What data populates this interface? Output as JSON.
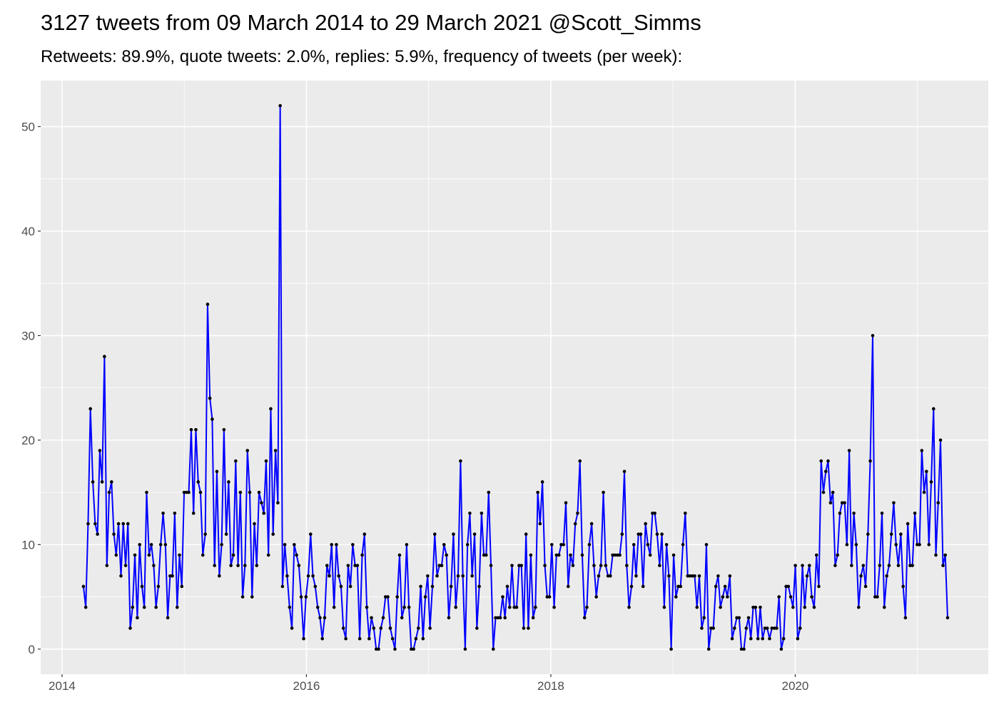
{
  "chart_data": {
    "type": "line",
    "title": "3127 tweets from 09 March 2014 to 29 March 2021 @Scott_Simms",
    "subtitle": "Retweets: 89.9%, quote tweets: 2.0%, replies: 5.9%, frequency of tweets (per week):",
    "color": "#0000ff",
    "marker_color": "#000000",
    "xlim": [
      2013.825,
      2021.58
    ],
    "xticks": [
      2014,
      2016,
      2018,
      2020
    ],
    "ylim": [
      -2.4,
      54.4
    ],
    "yticks": [
      0,
      10,
      20,
      30,
      40,
      50
    ],
    "grid": true,
    "x": [
      2014.175,
      2014.194,
      2014.213,
      2014.232,
      2014.252,
      2014.271,
      2014.29,
      2014.309,
      2014.328,
      2014.347,
      2014.367,
      2014.386,
      2014.405,
      2014.424,
      2014.443,
      2014.462,
      2014.482,
      2014.501,
      2014.52,
      2014.539,
      2014.558,
      2014.577,
      2014.596,
      2014.616,
      2014.635,
      2014.654,
      2014.673,
      2014.692,
      2014.712,
      2014.731,
      2014.75,
      2014.769,
      2014.788,
      2014.807,
      2014.827,
      2014.846,
      2014.865,
      2014.884,
      2014.903,
      2014.922,
      2014.942,
      2014.961,
      2014.98,
      2014.999,
      2015.018,
      2015.037,
      2015.057,
      2015.076,
      2015.095,
      2015.114,
      2015.133,
      2015.152,
      2015.172,
      2015.191,
      2015.21,
      2015.229,
      2015.248,
      2015.267,
      2015.287,
      2015.306,
      2015.325,
      2015.344,
      2015.363,
      2015.382,
      2015.402,
      2015.421,
      2015.44,
      2015.459,
      2015.478,
      2015.497,
      2015.517,
      2015.536,
      2015.555,
      2015.574,
      2015.593,
      2015.612,
      2015.632,
      2015.651,
      2015.67,
      2015.689,
      2015.708,
      2015.727,
      2015.747,
      2015.766,
      2015.785,
      2015.804,
      2015.823,
      2015.842,
      2015.862,
      2015.881,
      2015.9,
      2015.919,
      2015.938,
      2015.957,
      2015.977,
      2015.996,
      2016.015,
      2016.034,
      2016.053,
      2016.072,
      2016.092,
      2016.111,
      2016.13,
      2016.149,
      2016.168,
      2016.187,
      2016.206,
      2016.226,
      2016.245,
      2016.264,
      2016.283,
      2016.302,
      2016.322,
      2016.341,
      2016.36,
      2016.379,
      2016.398,
      2016.417,
      2016.436,
      2016.456,
      2016.475,
      2016.494,
      2016.513,
      2016.532,
      2016.551,
      2016.571,
      2016.59,
      2016.609,
      2016.628,
      2016.647,
      2016.666,
      2016.686,
      2016.705,
      2016.724,
      2016.743,
      2016.762,
      2016.781,
      2016.801,
      2016.82,
      2016.839,
      2016.858,
      2016.877,
      2016.896,
      2016.916,
      2016.935,
      2016.954,
      2016.973,
      2016.992,
      2017.011,
      2017.031,
      2017.05,
      2017.069,
      2017.088,
      2017.107,
      2017.126,
      2017.146,
      2017.165,
      2017.184,
      2017.203,
      2017.222,
      2017.241,
      2017.261,
      2017.28,
      2017.299,
      2017.318,
      2017.337,
      2017.356,
      2017.376,
      2017.395,
      2017.414,
      2017.433,
      2017.452,
      2017.471,
      2017.491,
      2017.51,
      2017.529,
      2017.548,
      2017.567,
      2017.586,
      2017.606,
      2017.625,
      2017.644,
      2017.663,
      2017.682,
      2017.701,
      2017.72,
      2017.74,
      2017.759,
      2017.778,
      2017.797,
      2017.816,
      2017.836,
      2017.855,
      2017.874,
      2017.893,
      2017.912,
      2017.931,
      2017.951,
      2017.97,
      2017.989,
      2018.008,
      2018.027,
      2018.046,
      2018.066,
      2018.085,
      2018.104,
      2018.123,
      2018.142,
      2018.161,
      2018.181,
      2018.2,
      2018.219,
      2018.238,
      2018.257,
      2018.276,
      2018.295,
      2018.315,
      2018.334,
      2018.353,
      2018.372,
      2018.391,
      2018.41,
      2018.43,
      2018.449,
      2018.468,
      2018.487,
      2018.506,
      2018.525,
      2018.545,
      2018.564,
      2018.583,
      2018.602,
      2018.621,
      2018.64,
      2018.66,
      2018.679,
      2018.698,
      2018.717,
      2018.736,
      2018.755,
      2018.775,
      2018.794,
      2018.813,
      2018.832,
      2018.851,
      2018.87,
      2018.89,
      2018.909,
      2018.928,
      2018.947,
      2018.966,
      2018.985,
      2019.005,
      2019.024,
      2019.043,
      2019.062,
      2019.081,
      2019.1,
      2019.12,
      2019.139,
      2019.158,
      2019.177,
      2019.196,
      2019.215,
      2019.235,
      2019.254,
      2019.273,
      2019.292,
      2019.311,
      2019.33,
      2019.35,
      2019.369,
      2019.388,
      2019.407,
      2019.426,
      2019.445,
      2019.465,
      2019.484,
      2019.503,
      2019.522,
      2019.541,
      2019.56,
      2019.58,
      2019.599,
      2019.618,
      2019.637,
      2019.656,
      2019.675,
      2019.695,
      2019.714,
      2019.733,
      2019.752,
      2019.771,
      2019.79,
      2019.809,
      2019.829,
      2019.848,
      2019.867,
      2019.886,
      2019.905,
      2019.925,
      2019.944,
      2019.963,
      2019.982,
      2020.001,
      2020.02,
      2020.04,
      2020.059,
      2020.078,
      2020.097,
      2020.116,
      2020.135,
      2020.155,
      2020.174,
      2020.193,
      2020.212,
      2020.231,
      2020.25,
      2020.269,
      2020.289,
      2020.308,
      2020.327,
      2020.346,
      2020.365,
      2020.384,
      2020.404,
      2020.423,
      2020.442,
      2020.461,
      2020.48,
      2020.499,
      2020.519,
      2020.538,
      2020.557,
      2020.576,
      2020.595,
      2020.614,
      2020.634,
      2020.653,
      2020.672,
      2020.691,
      2020.71,
      2020.729,
      2020.749,
      2020.768,
      2020.787,
      2020.806,
      2020.825,
      2020.844,
      2020.864,
      2020.883,
      2020.902,
      2020.921,
      2020.94,
      2020.959,
      2020.979,
      2020.998,
      2021.017,
      2021.036,
      2021.055,
      2021.074,
      2021.094,
      2021.113,
      2021.132,
      2021.151,
      2021.17,
      2021.189,
      2021.209,
      2021.228,
      2021.247
    ],
    "values": [
      6,
      4,
      12,
      23,
      16,
      12,
      11,
      19,
      16,
      28,
      8,
      15,
      16,
      11,
      9,
      12,
      7,
      12,
      8,
      12,
      2,
      4,
      9,
      3,
      10,
      6,
      4,
      15,
      9,
      10,
      8,
      4,
      6,
      10,
      13,
      10,
      3,
      7,
      7,
      13,
      4,
      9,
      6,
      15,
      15,
      15,
      21,
      13,
      21,
      16,
      15,
      9,
      11,
      33,
      24,
      22,
      8,
      17,
      7,
      10,
      21,
      11,
      16,
      8,
      9,
      18,
      8,
      15,
      5,
      8,
      19,
      15,
      5,
      12,
      8,
      15,
      14,
      13,
      18,
      9,
      23,
      11,
      19,
      14,
      52,
      6,
      10,
      7,
      4,
      2,
      10,
      9,
      8,
      5,
      1,
      5,
      7,
      11,
      7,
      6,
      4,
      3,
      1,
      3,
      8,
      7,
      10,
      4,
      10,
      7,
      6,
      2,
      1,
      8,
      6,
      10,
      8,
      8,
      1,
      9,
      11,
      4,
      1,
      3,
      2,
      0,
      0,
      2,
      3,
      5,
      5,
      2,
      1,
      0,
      5,
      9,
      3,
      4,
      10,
      4,
      0,
      0,
      1,
      2,
      6,
      1,
      5,
      7,
      2,
      6,
      11,
      7,
      8,
      8,
      10,
      9,
      3,
      6,
      11,
      4,
      7,
      18,
      7,
      0,
      10,
      13,
      7,
      11,
      2,
      6,
      13,
      9,
      9,
      15,
      8,
      0,
      3,
      3,
      3,
      5,
      3,
      6,
      4,
      8,
      4,
      4,
      8,
      8,
      2,
      11,
      2,
      9,
      3,
      4,
      15,
      12,
      16,
      8,
      5,
      5,
      10,
      4,
      9,
      9,
      10,
      10,
      14,
      6,
      9,
      8,
      12,
      13,
      18,
      9,
      3,
      4,
      10,
      12,
      8,
      5,
      7,
      8,
      15,
      8,
      7,
      7,
      9,
      9,
      9,
      9,
      11,
      17,
      8,
      4,
      6,
      10,
      7,
      11,
      11,
      6,
      12,
      10,
      9,
      13,
      13,
      11,
      8,
      11,
      4,
      10,
      7,
      0,
      9,
      5,
      6,
      6,
      10,
      13,
      7,
      7,
      7,
      7,
      4,
      7,
      2,
      3,
      10,
      0,
      2,
      2,
      6,
      7,
      4,
      5,
      6,
      5,
      7,
      1,
      2,
      3,
      3,
      0,
      0,
      2,
      3,
      1,
      4,
      4,
      1,
      4,
      1,
      2,
      2,
      1,
      2,
      2,
      2,
      5,
      0,
      1,
      6,
      6,
      5,
      4,
      8,
      1,
      2,
      8,
      4,
      7,
      8,
      5,
      4,
      9,
      6,
      18,
      15,
      17,
      18,
      14,
      15,
      8,
      9,
      13,
      14,
      14,
      10,
      19,
      8,
      13,
      10,
      4,
      7,
      8,
      6,
      11,
      18,
      30,
      5,
      5,
      8,
      13,
      4,
      7,
      8,
      11,
      14,
      10,
      8,
      11,
      6,
      3,
      12,
      8,
      8,
      13,
      10,
      10,
      19,
      15,
      17,
      10,
      16,
      23,
      9,
      14,
      20,
      8,
      9,
      3
    ]
  }
}
